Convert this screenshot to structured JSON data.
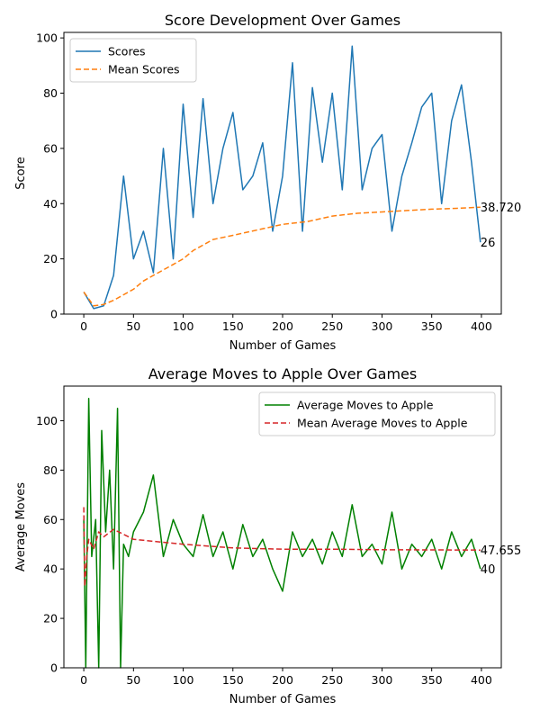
{
  "chart_data": [
    {
      "type": "line",
      "title": "Score Development Over Games",
      "xlabel": "Number of Games",
      "ylabel": "Score",
      "xlim": [
        -20,
        420
      ],
      "ylim": [
        0,
        102
      ],
      "xticks": [
        0,
        50,
        100,
        150,
        200,
        250,
        300,
        350,
        400
      ],
      "yticks": [
        0,
        20,
        40,
        60,
        80,
        100
      ],
      "legend_position": "top-left",
      "series": [
        {
          "name": "Scores",
          "style": "solid",
          "color": "#1f77b4",
          "x": [
            0,
            10,
            20,
            30,
            40,
            50,
            60,
            70,
            80,
            90,
            100,
            110,
            120,
            130,
            140,
            150,
            160,
            170,
            180,
            190,
            200,
            210,
            220,
            230,
            240,
            250,
            260,
            270,
            280,
            290,
            300,
            310,
            320,
            330,
            340,
            350,
            360,
            370,
            380,
            390,
            399
          ],
          "y": [
            8,
            2,
            3,
            14,
            50,
            20,
            30,
            15,
            60,
            20,
            76,
            35,
            78,
            40,
            60,
            73,
            45,
            50,
            62,
            30,
            50,
            91,
            30,
            82,
            55,
            80,
            45,
            97,
            45,
            60,
            65,
            30,
            50,
            62,
            75,
            80,
            40,
            70,
            83,
            55,
            26
          ]
        },
        {
          "name": "Mean Scores",
          "style": "dashed",
          "color": "#ff7f0e",
          "x": [
            0,
            10,
            20,
            30,
            40,
            50,
            60,
            70,
            80,
            90,
            100,
            110,
            120,
            130,
            150,
            175,
            200,
            225,
            250,
            275,
            300,
            325,
            350,
            375,
            399
          ],
          "y": [
            8,
            3,
            3.5,
            5,
            7,
            9,
            12,
            14,
            16,
            18,
            20,
            23,
            25,
            27,
            28.5,
            30.5,
            32.5,
            33.5,
            35.5,
            36.5,
            37,
            37.5,
            38,
            38.3,
            38.72
          ]
        }
      ],
      "annotations": [
        {
          "x": 399,
          "y": 38.72,
          "text": "38.720"
        },
        {
          "x": 399,
          "y": 26,
          "text": "26"
        }
      ]
    },
    {
      "type": "line",
      "title": "Average Moves to Apple Over Games",
      "xlabel": "Number of Games",
      "ylabel": "Average Moves",
      "xlim": [
        -20,
        420
      ],
      "ylim": [
        0,
        114
      ],
      "xticks": [
        0,
        50,
        100,
        150,
        200,
        250,
        300,
        350,
        400
      ],
      "yticks": [
        0,
        20,
        40,
        60,
        80,
        100
      ],
      "legend_position": "top-right",
      "series": [
        {
          "name": "Average Moves to Apple",
          "style": "solid",
          "color": "#008000",
          "x": [
            0,
            2,
            5,
            8,
            12,
            15,
            18,
            22,
            26,
            30,
            34,
            37,
            40,
            45,
            50,
            60,
            70,
            80,
            90,
            100,
            110,
            120,
            130,
            140,
            150,
            160,
            170,
            180,
            190,
            200,
            210,
            220,
            230,
            240,
            250,
            260,
            270,
            280,
            290,
            300,
            310,
            320,
            330,
            340,
            350,
            360,
            370,
            380,
            390,
            399
          ],
          "y": [
            60,
            0,
            109,
            45,
            60,
            0,
            96,
            55,
            80,
            40,
            105,
            0,
            50,
            45,
            55,
            63,
            78,
            45,
            60,
            50,
            45,
            62,
            45,
            55,
            40,
            58,
            45,
            52,
            40,
            31,
            55,
            45,
            52,
            42,
            55,
            45,
            66,
            45,
            50,
            42,
            63,
            40,
            50,
            45,
            52,
            40,
            55,
            45,
            52,
            40
          ]
        },
        {
          "name": "Mean Average Moves to Apple",
          "style": "dashed",
          "color": "#d62728",
          "x": [
            0,
            1,
            3,
            5,
            10,
            15,
            20,
            30,
            40,
            50,
            75,
            100,
            150,
            200,
            250,
            300,
            350,
            399
          ],
          "y": [
            65,
            33,
            45,
            52,
            48,
            55,
            53,
            56,
            54,
            52,
            51,
            50,
            48.5,
            48,
            48,
            47.8,
            47.7,
            47.655
          ]
        }
      ],
      "annotations": [
        {
          "x": 399,
          "y": 47.655,
          "text": "47.655"
        },
        {
          "x": 399,
          "y": 40,
          "text": "40"
        }
      ]
    }
  ]
}
